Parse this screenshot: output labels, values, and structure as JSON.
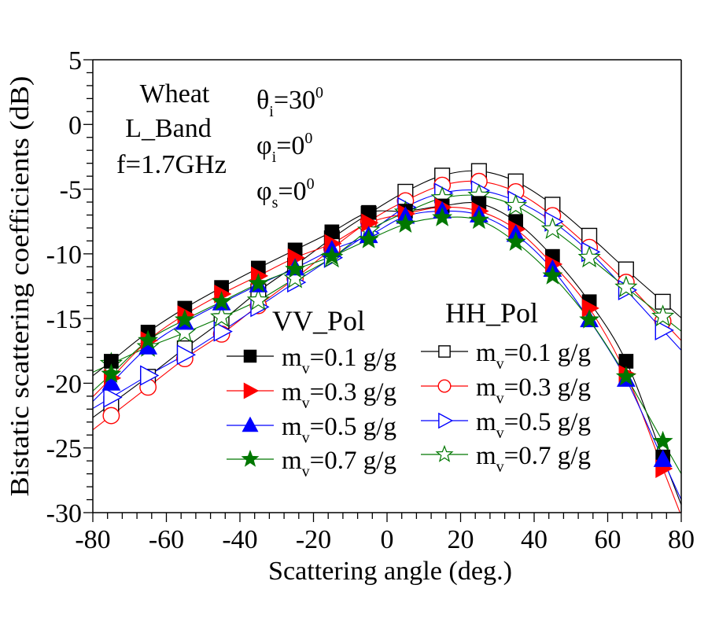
{
  "chart_data": {
    "type": "line",
    "title": "",
    "xlabel": "Scattering angle (deg.)",
    "ylabel": "Bistatic scattering coefficients (dB)",
    "xlim": [
      -80,
      80
    ],
    "ylim": [
      -30,
      5
    ],
    "xticks": [
      -80,
      -60,
      -40,
      -20,
      0,
      20,
      40,
      60,
      80
    ],
    "xtick_labels": [
      "-80",
      "-60",
      "-40",
      "-20",
      "0",
      "20",
      "40",
      "60",
      "80"
    ],
    "yticks": [
      5,
      0,
      -5,
      -10,
      -15,
      -20,
      -25,
      -30
    ],
    "ytick_labels": [
      "5",
      "0",
      "-5",
      "-10",
      "-15",
      "-20",
      "-25",
      "-30"
    ],
    "grid": false,
    "annotations": {
      "crop": "Wheat",
      "band": "L_Band",
      "frequency": "f=1.7GHz",
      "theta_i": {
        "symbol": "θ",
        "sub": "i",
        "value": "=30",
        "sup": "0"
      },
      "phi_i": {
        "symbol": "φ",
        "sub": "i",
        "value": "=0",
        "sup": "0"
      },
      "phi_s": {
        "symbol": "φ",
        "sub": "s",
        "value": "=0",
        "sup": "0"
      }
    },
    "legend_groups": [
      {
        "title": "VV_Pol",
        "placement": "center"
      },
      {
        "title": "HH_Pol",
        "placement": "center-right"
      }
    ],
    "x": [
      -75,
      -65,
      -55,
      -45,
      -35,
      -25,
      -15,
      -5,
      5,
      15,
      25,
      35,
      45,
      55,
      65,
      75
    ],
    "series": [
      {
        "name": "VV m_v=0.1 g/g",
        "group": "VV_Pol",
        "label_pre": "m",
        "label_sub": "v",
        "label_post": "=0.1 g/g",
        "color": "#000000",
        "marker": "square-filled",
        "values": [
          -18.3,
          -16.05,
          -14.2,
          -12.6,
          -11.1,
          -9.7,
          -8.3,
          -6.8,
          -6.7,
          -6.3,
          -6.1,
          -7.5,
          -10.2,
          -13.7,
          -18.3,
          -25.7
        ]
      },
      {
        "name": "VV m_v=0.3 g/g",
        "group": "VV_Pol",
        "label_pre": "m",
        "label_sub": "v",
        "label_post": "=0.3 g/g",
        "color": "#ff0000",
        "marker": "triangle-right-filled",
        "values": [
          -19.6,
          -16.7,
          -14.7,
          -13.1,
          -11.7,
          -10.3,
          -9.2,
          -7.6,
          -6.9,
          -6.4,
          -6.7,
          -8.1,
          -10.8,
          -14.2,
          -19.3,
          -26.6
        ]
      },
      {
        "name": "VV m_v=0.5 g/g",
        "group": "VV_Pol",
        "label_pre": "m",
        "label_sub": "v",
        "label_post": "=0.5 g/g",
        "color": "#0000ff",
        "marker": "triangle-up-filled",
        "values": [
          -20.0,
          -17.2,
          -15.3,
          -13.8,
          -12.4,
          -11.1,
          -9.7,
          -8.6,
          -7.1,
          -6.7,
          -7.0,
          -8.5,
          -11.2,
          -15.1,
          -19.7,
          -25.9
        ]
      },
      {
        "name": "VV m_v=0.7 g/g",
        "group": "VV_Pol",
        "label_pre": "m",
        "label_sub": "v",
        "label_post": "=0.7 g/g",
        "color": "#007700",
        "marker": "star-filled",
        "values": [
          -19.3,
          -16.7,
          -15.1,
          -13.7,
          -12.3,
          -11.2,
          -10.2,
          -8.9,
          -7.7,
          -7.2,
          -7.4,
          -9.1,
          -11.7,
          -15.1,
          -19.5,
          -24.5
        ]
      },
      {
        "name": "HH m_v=0.1 g/g",
        "group": "HH_Pol",
        "label_pre": "m",
        "label_sub": "v",
        "label_post": "=0.1 g/g",
        "color": "#000000",
        "marker": "square-open",
        "values": [
          -21.6,
          -19.5,
          -17.3,
          -15.2,
          -12.9,
          -10.9,
          -8.8,
          -6.9,
          -5.2,
          -3.95,
          -3.6,
          -4.4,
          -6.2,
          -8.6,
          -11.2,
          -13.7
        ]
      },
      {
        "name": "HH m_v=0.3 g/g",
        "group": "HH_Pol",
        "label_pre": "m",
        "label_sub": "v",
        "label_post": "=0.3 g/g",
        "color": "#ff0000",
        "marker": "circle-open",
        "values": [
          -22.5,
          -20.3,
          -18.1,
          -16.2,
          -14.0,
          -11.9,
          -9.6,
          -7.5,
          -5.9,
          -4.7,
          -4.4,
          -5.2,
          -7.05,
          -9.5,
          -12.2,
          -15.2
        ]
      },
      {
        "name": "HH m_v=0.5 g/g",
        "group": "HH_Pol",
        "label_pre": "m",
        "label_sub": "v",
        "label_post": "=0.5 g/g",
        "color": "#0000ff",
        "marker": "triangle-right-open",
        "values": [
          -21.1,
          -19.4,
          -17.8,
          -16.0,
          -14.1,
          -12.2,
          -10.3,
          -8.4,
          -6.4,
          -5.3,
          -5.1,
          -5.9,
          -7.5,
          -9.85,
          -12.8,
          -15.9
        ]
      },
      {
        "name": "HH m_v=0.7 g/g",
        "group": "HH_Pol",
        "label_pre": "m",
        "label_sub": "v",
        "label_post": "=0.7 g/g",
        "color": "#007700",
        "marker": "star-open",
        "values": [
          -18.5,
          -17.2,
          -16.1,
          -14.9,
          -13.6,
          -11.9,
          -10.3,
          -8.2,
          -6.8,
          -5.7,
          -5.5,
          -6.3,
          -8.1,
          -10.3,
          -12.6,
          -14.85
        ]
      }
    ]
  }
}
